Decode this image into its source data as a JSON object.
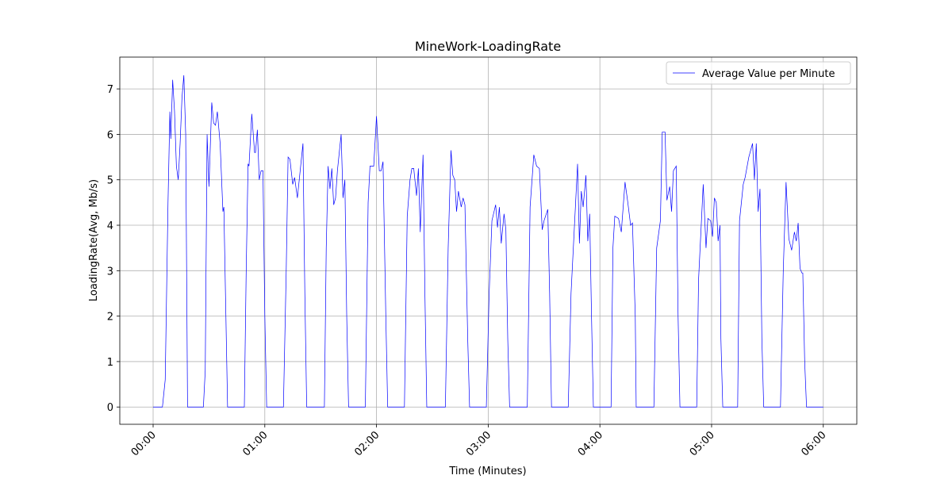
{
  "chart_data": {
    "type": "line",
    "title": "MineWork-LoadingRate",
    "x_label": "Time (Minutes)",
    "y_label": "LoadingRate(Avg, Mb/s)",
    "x": [
      0,
      5,
      6.5,
      8,
      9,
      9.5,
      10.5,
      11.5,
      12.5,
      13.5,
      14.5,
      15.5,
      16.5,
      17.5,
      18.5,
      27,
      28,
      29,
      30,
      31.5,
      32.5,
      33.5,
      34.5,
      36,
      37.5,
      38,
      40,
      49,
      50,
      51,
      51.5,
      53,
      54.5,
      55,
      56,
      57,
      58,
      59,
      60,
      61,
      70,
      71.5,
      72.5,
      73.5,
      75,
      76,
      77.5,
      79,
      80.5,
      81.5,
      82.5,
      92,
      93,
      94,
      95,
      96,
      97,
      98,
      99,
      101,
      102,
      103,
      104,
      105,
      114,
      115.5,
      116.5,
      118.5,
      120,
      121.5,
      122.5,
      123.5,
      125,
      126,
      135,
      136.5,
      138,
      139,
      140,
      141.5,
      142.5,
      143.5,
      145,
      146,
      147,
      157,
      158.5,
      160,
      161,
      162,
      163,
      164,
      165.5,
      166.5,
      167.5,
      169,
      170,
      179,
      180.5,
      182,
      184,
      185,
      186,
      187,
      188.5,
      189.5,
      190.5,
      191.5,
      201,
      202.5,
      204.5,
      206,
      207.5,
      209,
      210,
      212,
      213,
      214,
      223,
      224.5,
      228,
      229,
      230,
      231,
      232.5,
      233.5,
      234.5,
      235.5,
      236.5,
      246,
      247,
      248,
      250,
      251.5,
      253.5,
      255,
      256.5,
      257.5,
      259,
      259.5,
      269,
      270.5,
      272.5,
      273.5,
      275,
      276,
      277.5,
      278.5,
      279.5,
      281,
      282,
      283,
      292,
      293,
      295.5,
      297,
      298,
      299.5,
      300.5,
      301.5,
      302.5,
      303.5,
      304.5,
      305,
      306,
      314,
      315,
      317,
      318,
      320,
      322,
      323,
      324,
      325,
      326,
      327,
      328,
      337,
      338.5,
      340,
      341.5,
      343,
      344.5,
      345.5,
      346.5,
      347.5,
      348.5,
      349,
      350,
      351,
      360
    ],
    "series": [
      {
        "name": "Average Value per Minute",
        "color": "#0000ff",
        "values": [
          0,
          0,
          0.6,
          4.5,
          6.5,
          5.9,
          7.2,
          6.5,
          5.3,
          5.0,
          5.8,
          6.8,
          7.3,
          6.0,
          0,
          0,
          0.8,
          6.0,
          4.85,
          6.7,
          6.25,
          6.2,
          6.5,
          5.8,
          4.3,
          4.4,
          0,
          0,
          3.0,
          5.35,
          5.3,
          6.45,
          5.6,
          5.6,
          6.1,
          5.0,
          5.2,
          5.2,
          2.0,
          0,
          0,
          3.0,
          5.5,
          5.45,
          4.9,
          5.05,
          4.6,
          5.2,
          5.8,
          2.5,
          0,
          0,
          3.5,
          5.3,
          4.8,
          5.25,
          4.45,
          4.6,
          5.2,
          6.0,
          4.6,
          5.0,
          2.0,
          0,
          0,
          4.5,
          5.3,
          5.3,
          6.4,
          5.2,
          5.2,
          5.4,
          2.0,
          0,
          0,
          4.2,
          5.0,
          5.25,
          5.25,
          4.65,
          5.25,
          3.85,
          5.55,
          2.5,
          0,
          0,
          3.5,
          5.65,
          5.1,
          5.0,
          4.3,
          4.75,
          4.4,
          4.6,
          4.45,
          1.5,
          0,
          0,
          2.5,
          4.1,
          4.45,
          3.95,
          4.4,
          3.6,
          4.25,
          3.9,
          1.5,
          0,
          0,
          4.4,
          5.55,
          5.3,
          5.25,
          3.9,
          4.1,
          4.35,
          2.5,
          0,
          0,
          2.5,
          5.35,
          3.6,
          4.75,
          4.4,
          5.1,
          3.65,
          4.25,
          2.0,
          0,
          0,
          3.5,
          4.2,
          4.15,
          3.85,
          4.95,
          4.5,
          4.0,
          4.05,
          2.0,
          0,
          0,
          3.5,
          4.1,
          6.05,
          6.05,
          4.55,
          4.85,
          4.3,
          5.2,
          5.3,
          2.0,
          0,
          0,
          2.8,
          4.9,
          3.5,
          4.15,
          4.1,
          3.75,
          4.6,
          4.5,
          3.65,
          4.0,
          1.5,
          0,
          0,
          4.1,
          4.9,
          5.05,
          5.5,
          5.8,
          5.0,
          5.8,
          4.3,
          4.8,
          1.5,
          0,
          0,
          3.0,
          4.95,
          3.7,
          3.45,
          3.85,
          3.65,
          4.05,
          3.05,
          2.95,
          2.95,
          1.0,
          0,
          0
        ]
      }
    ],
    "xlim": [
      -17.9,
      378
    ],
    "ylim": [
      -0.38,
      7.7
    ],
    "xticks": [
      {
        "value": 0,
        "label": "00:00"
      },
      {
        "value": 60,
        "label": "01:00"
      },
      {
        "value": 120,
        "label": "02:00"
      },
      {
        "value": 180,
        "label": "03:00"
      },
      {
        "value": 240,
        "label": "04:00"
      },
      {
        "value": 300,
        "label": "05:00"
      },
      {
        "value": 360,
        "label": "06:00"
      }
    ],
    "yticks": [
      0,
      1,
      2,
      3,
      4,
      5,
      6,
      7
    ],
    "grid": true,
    "legend": "upper-right"
  }
}
